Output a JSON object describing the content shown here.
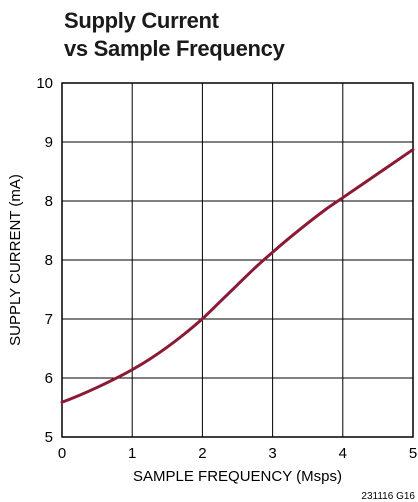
{
  "title_line1": "Supply Current",
  "title_line2": "vs Sample Frequency",
  "figure_id": "231116 G16",
  "chart_data": {
    "type": "line",
    "title": "Supply Current vs Sample Frequency",
    "xlabel": "SAMPLE FREQUENCY (Msps)",
    "ylabel": "SUPPLY CURRENT (mA)",
    "xlim": [
      0,
      5
    ],
    "ylim": [
      5,
      10
    ],
    "x_ticks": [
      "0",
      "1",
      "2",
      "3",
      "4",
      "5"
    ],
    "y_ticks": [
      "5",
      "6",
      "7",
      "8",
      "8",
      "9",
      "10"
    ],
    "grid": true,
    "line_color": "#8b1a35",
    "series": [
      {
        "x": [
          0,
          0.25,
          0.5,
          0.75,
          1.0,
          1.25,
          1.5,
          1.75,
          2.0,
          2.25,
          2.5,
          2.75,
          3.0,
          3.25,
          3.5,
          3.75,
          4.0,
          4.25,
          4.5,
          4.75,
          5.0
        ],
        "values": [
          5.49,
          5.59,
          5.7,
          5.82,
          5.95,
          6.1,
          6.27,
          6.46,
          6.67,
          6.91,
          7.15,
          7.39,
          7.61,
          7.82,
          8.02,
          8.21,
          8.38,
          8.55,
          8.72,
          8.89,
          9.06
        ]
      }
    ]
  }
}
